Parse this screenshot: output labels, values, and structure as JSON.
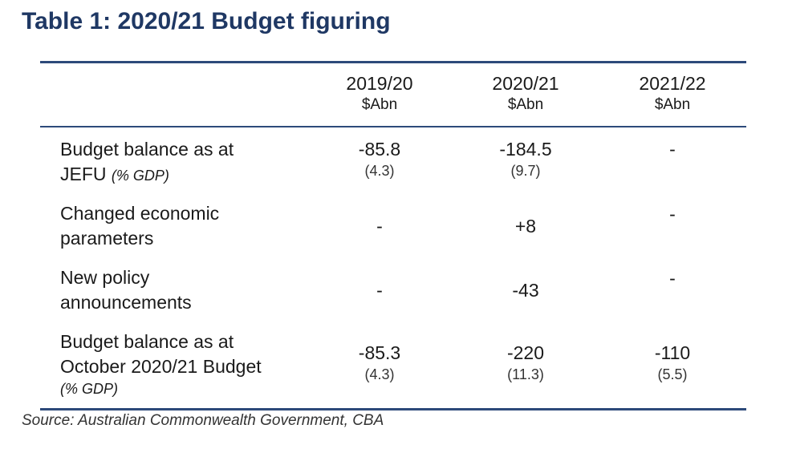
{
  "title": "Table 1: 2020/21 Budget figuring",
  "columns": [
    {
      "year": "2019/20",
      "unit": "$Abn"
    },
    {
      "year": "2020/21",
      "unit": "$Abn"
    },
    {
      "year": "2021/22",
      "unit": "$Abn"
    }
  ],
  "rows": [
    {
      "label_line1": "Budget balance as at",
      "label_line2": "JEFU",
      "label_pct": "(% GDP)",
      "cells": [
        {
          "value": "-85.8",
          "pct": "(4.3)"
        },
        {
          "value": "-184.5",
          "pct": "(9.7)"
        },
        {
          "value": "-",
          "pct": ""
        }
      ]
    },
    {
      "label_line1": "Changed economic",
      "label_line2": "parameters",
      "cells": [
        {
          "value": "-"
        },
        {
          "value": "+8"
        },
        {
          "value": "-"
        }
      ]
    },
    {
      "label_line1": "New policy",
      "label_line2": "announcements",
      "cells": [
        {
          "value": "-"
        },
        {
          "value": "-43"
        },
        {
          "value": "-"
        }
      ]
    },
    {
      "label_line1": "Budget balance as at",
      "label_line2": "October 2020/21 Budget",
      "label_pct": "(% GDP)",
      "cells": [
        {
          "value": "-85.3",
          "pct": "(4.3)"
        },
        {
          "value": "-220",
          "pct": "(11.3)"
        },
        {
          "value": "-110",
          "pct": "(5.5)"
        }
      ]
    }
  ],
  "source": "Source: Australian Commonwealth Government, CBA"
}
